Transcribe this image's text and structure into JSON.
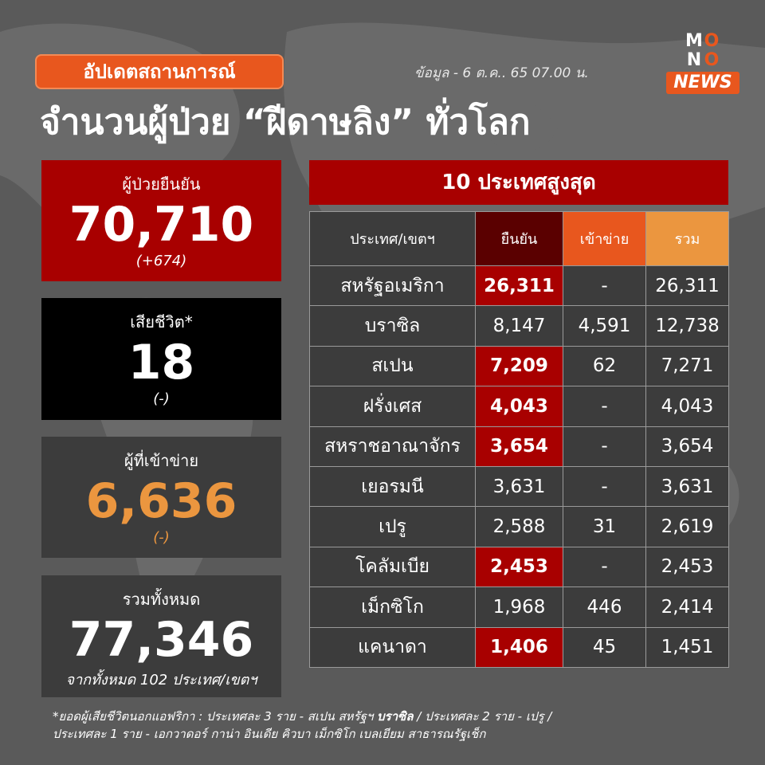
{
  "badge": "อัปเดตสถานการณ์",
  "as_of": "ข้อมูล - 6 ต.ค.. 65 07.00 น.",
  "logo": {
    "letters": [
      "M",
      "O",
      "N",
      "O"
    ],
    "news": "NEWS"
  },
  "title": "จำนวนผู้ป่วย “ฝีดาษลิง” ทั่วโลก",
  "cards": {
    "confirmed": {
      "label": "ผู้ป่วยยืนยัน",
      "value": "70,710",
      "sub": "(+674)"
    },
    "deaths": {
      "label": "เสียชีวิต*",
      "value": "18",
      "sub": "(-)"
    },
    "entered": {
      "label": "ผู้ที่เข้าข่าย",
      "value": "6,636",
      "sub": "(-)"
    },
    "total": {
      "label": "รวมทั้งหมด",
      "value": "77,346",
      "sub": "จากทั้งหมด 102 ประเทศ/เขตฯ"
    }
  },
  "table": {
    "title": "10 ประเทศสูงสุด",
    "headers": [
      "ประเทศ/เขตฯ",
      "ยืนยัน",
      "เข้าข่าย",
      "รวม"
    ],
    "rows": [
      {
        "country": "สหรัฐอเมริกา",
        "confirmed": "26,311",
        "entered": "-",
        "total": "26,311",
        "highlight": true
      },
      {
        "country": "บราซิล",
        "confirmed": "8,147",
        "entered": "4,591",
        "total": "12,738",
        "highlight": false
      },
      {
        "country": "สเปน",
        "confirmed": "7,209",
        "entered": "62",
        "total": "7,271",
        "highlight": true
      },
      {
        "country": "ฝรั่งเศส",
        "confirmed": "4,043",
        "entered": "-",
        "total": "4,043",
        "highlight": true
      },
      {
        "country": "สหราชอาณาจักร",
        "confirmed": "3,654",
        "entered": "-",
        "total": "3,654",
        "highlight": true
      },
      {
        "country": "เยอรมนี",
        "confirmed": "3,631",
        "entered": "-",
        "total": "3,631",
        "highlight": false
      },
      {
        "country": "เปรู",
        "confirmed": "2,588",
        "entered": "31",
        "total": "2,619",
        "highlight": false
      },
      {
        "country": "โคลัมเบีย",
        "confirmed": "2,453",
        "entered": "-",
        "total": "2,453",
        "highlight": true
      },
      {
        "country": "เม็กซิโก",
        "confirmed": "1,968",
        "entered": "446",
        "total": "2,414",
        "highlight": false
      },
      {
        "country": "แคนาดา",
        "confirmed": "1,406",
        "entered": "45",
        "total": "1,451",
        "highlight": true
      }
    ]
  },
  "footnote": {
    "line1_a": "*ยอดผู้เสียชีวิตนอกแอฟริกา : ประเทศละ 3 ราย - สเปน สหรัฐฯ ",
    "line1_bold": "บราซิล",
    "line1_b": " / ประเทศละ 2 ราย - เปรู  /",
    "line2": "ประเทศละ 1 ราย - เอกวาดอร์ กาน่า อินเดีย คิวบา เม็กซิโก เบลเยียม สาธารณรัฐเช็ก"
  },
  "colors": {
    "background": "#5a5a5a",
    "accent_orange": "#e8571e",
    "red": "#a80000",
    "dark_red": "#5a0000",
    "light_orange": "#eb963f",
    "panel": "#3c3c3c"
  }
}
